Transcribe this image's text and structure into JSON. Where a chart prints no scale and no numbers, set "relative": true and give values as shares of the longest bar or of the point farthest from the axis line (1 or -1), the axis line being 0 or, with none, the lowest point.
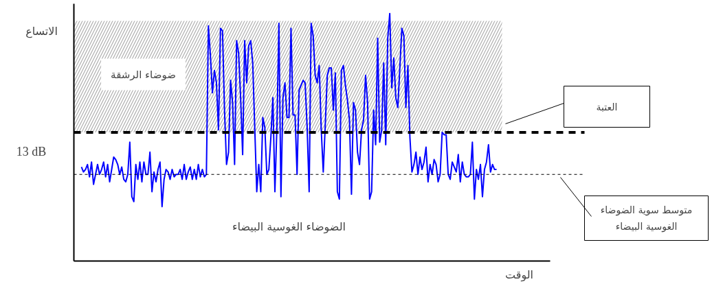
{
  "chart_data": {
    "type": "line",
    "relative": true,
    "xlabel": "الوقت",
    "ylabel": "الاتساع",
    "categories": [
      null,
      null,
      null,
      null,
      null,
      null,
      null,
      null,
      null,
      null,
      null,
      null,
      null,
      null,
      null,
      null,
      null,
      null,
      null,
      null,
      null,
      null,
      null,
      null,
      null,
      null,
      null,
      null,
      null,
      null,
      null,
      null,
      null,
      null,
      null,
      null,
      null,
      null,
      null,
      null,
      null,
      null,
      null,
      null,
      null,
      null,
      null,
      null,
      null,
      null,
      null,
      null,
      null,
      null,
      null,
      null,
      null,
      null,
      null,
      null,
      null,
      null,
      null,
      null,
      null,
      null,
      null,
      null,
      null,
      null,
      null,
      null,
      null,
      null,
      null,
      null,
      null,
      null,
      null,
      null,
      null,
      null,
      null,
      null,
      null,
      null,
      null,
      null,
      null,
      null,
      null,
      null,
      null,
      null,
      null,
      null,
      null,
      null,
      null,
      null,
      null,
      null,
      null,
      null,
      null,
      null,
      null,
      null,
      null,
      null,
      null,
      null,
      null,
      null,
      null,
      null,
      null,
      null,
      null,
      null,
      null,
      null,
      null,
      null,
      null,
      null,
      null,
      null,
      null,
      null,
      null,
      null,
      null,
      null,
      null,
      null,
      null,
      null,
      null,
      null,
      null,
      null,
      null,
      null,
      null,
      null,
      null,
      null,
      null,
      null,
      null,
      null,
      null,
      null,
      null,
      null,
      null,
      null,
      null,
      null,
      null,
      null,
      null,
      null,
      null,
      null,
      null,
      null,
      null,
      null,
      null,
      null,
      null,
      null,
      null,
      null,
      null,
      null,
      null,
      null,
      null,
      null,
      null,
      null,
      null,
      null,
      null,
      null,
      null,
      null,
      null,
      null,
      null,
      null,
      null,
      null,
      null,
      null,
      null,
      null,
      null,
      null,
      null,
      null,
      null,
      null,
      null
    ],
    "annotations": [
      "13 dB",
      "الضوضاء الغوسية البيضاء"
    ],
    "ref_lines": [
      {
        "axis": "y",
        "value": 0.52,
        "label": "العتبة",
        "color": "#000000",
        "line_style": "dashed"
      },
      {
        "axis": "y",
        "value": 0.35,
        "label": "متوسط سوية الضوضاء الغوسية البيضاء",
        "color": "#000000",
        "line_style": "dotted"
      }
    ],
    "bands": [
      {
        "axis": "y",
        "from": 0.52,
        "to": 0.97,
        "label": "ضوضاء الرشقة",
        "color": "#999999"
      }
    ],
    "series": [
      {
        "color": "#0000ff",
        "values": [
          0.38,
          0.36,
          0.37,
          0.39,
          0.34,
          0.4,
          0.31,
          0.35,
          0.39,
          0.35,
          0.37,
          0.4,
          0.34,
          0.39,
          0.32,
          0.37,
          0.42,
          0.41,
          0.39,
          0.35,
          0.38,
          0.33,
          0.32,
          0.35,
          0.48,
          0.26,
          0.24,
          0.39,
          0.33,
          0.4,
          0.32,
          0.4,
          0.35,
          0.35,
          0.44,
          0.28,
          0.36,
          0.32,
          0.37,
          0.4,
          0.22,
          0.33,
          0.37,
          0.36,
          0.33,
          0.37,
          0.34,
          0.35,
          0.35,
          0.37,
          0.33,
          0.39,
          0.33,
          0.36,
          0.38,
          0.33,
          0.37,
          0.33,
          0.39,
          0.34,
          0.37,
          0.34,
          0.35,
          0.95,
          0.83,
          0.68,
          0.77,
          0.72,
          0.53,
          0.94,
          0.93,
          0.61,
          0.39,
          0.44,
          0.73,
          0.64,
          0.39,
          0.89,
          0.84,
          0.66,
          0.43,
          0.89,
          0.72,
          0.87,
          0.89,
          0.8,
          0.54,
          0.28,
          0.39,
          0.28,
          0.58,
          0.54,
          0.35,
          0.37,
          0.5,
          0.66,
          0.28,
          0.54,
          0.96,
          0.26,
          0.66,
          0.72,
          0.58,
          0.58,
          0.94,
          0.59,
          0.59,
          0.35,
          0.69,
          0.71,
          0.73,
          0.72,
          0.54,
          0.28,
          0.96,
          0.91,
          0.75,
          0.72,
          0.79,
          0.53,
          0.36,
          0.55,
          0.75,
          0.78,
          0.78,
          0.61,
          0.76,
          0.28,
          0.25,
          0.77,
          0.79,
          0.71,
          0.65,
          0.57,
          0.27,
          0.64,
          0.61,
          0.44,
          0.39,
          0.53,
          0.57,
          0.75,
          0.64,
          0.25,
          0.28,
          0.61,
          0.47,
          0.9,
          0.48,
          0.53,
          0.8,
          0.47,
          0.9,
          1.0,
          0.7,
          0.82,
          0.66,
          0.62,
          0.78,
          0.94,
          0.91,
          0.62,
          0.79,
          0.5,
          0.36,
          0.39,
          0.44,
          0.35,
          0.42,
          0.37,
          0.4,
          0.46,
          0.32,
          0.39,
          0.35,
          0.41,
          0.39,
          0.32,
          0.35,
          0.52,
          0.51,
          0.51,
          0.35,
          0.33,
          0.4,
          0.38,
          0.36,
          0.43,
          0.32,
          0.4,
          0.35,
          0.34,
          0.34,
          0.35,
          0.48,
          0.25,
          0.37,
          0.33,
          0.39,
          0.26,
          0.37,
          0.4,
          0.47,
          0.36,
          0.39,
          0.37,
          0.37
        ]
      }
    ]
  }
}
